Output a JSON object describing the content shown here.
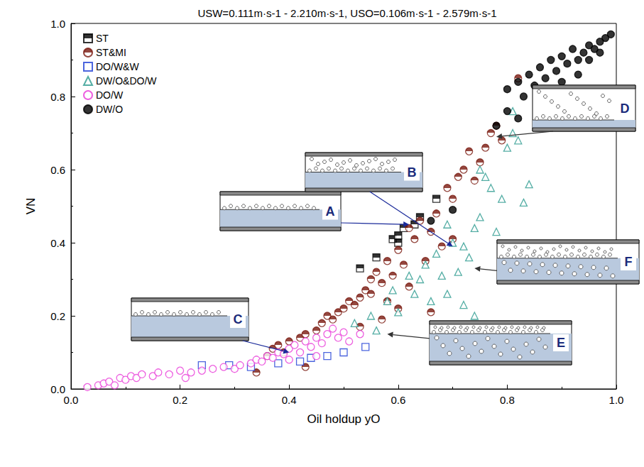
{
  "chart_data": {
    "type": "scatter",
    "title": "USW=0.111m·s-1 - 2.210m·s-1, USO=0.106m·s-1 - 2.579m·s-1",
    "x_label": "Oil holdup yO",
    "y_label": "VN",
    "xlim": [
      0,
      1
    ],
    "ylim": [
      0,
      1
    ],
    "xticks": [
      {
        "value": 0,
        "label": "0.0"
      },
      {
        "value": 0.2,
        "label": "0.2"
      },
      {
        "value": 0.4,
        "label": "0.4"
      },
      {
        "value": 0.6,
        "label": "0.6"
      },
      {
        "value": 0.8,
        "label": "0.8"
      },
      {
        "value": 1,
        "label": "1.0"
      }
    ],
    "yticks": [
      {
        "value": 0,
        "label": "0.0"
      },
      {
        "value": 0.2,
        "label": "0.2"
      },
      {
        "value": 0.4,
        "label": "0.4"
      },
      {
        "value": 0.6,
        "label": "0.6"
      },
      {
        "value": 0.8,
        "label": "0.8"
      },
      {
        "value": 1,
        "label": "1.0"
      }
    ],
    "grid": false,
    "legend": "upper left",
    "series": [
      {
        "name": "ST",
        "color": "#000000",
        "marker": "half-square",
        "x": [
          0.53,
          0.56,
          0.59,
          0.6,
          0.61,
          0.63,
          0.64,
          0.67,
          0.6
        ],
        "values": [
          0.33,
          0.36,
          0.41,
          0.42,
          0.44,
          0.45,
          0.47,
          0.52,
          0.4
        ]
      },
      {
        "name": "ST&MI",
        "color": "#7a1a10",
        "marker": "half-circle",
        "x": [
          0.34,
          0.36,
          0.37,
          0.38,
          0.39,
          0.4,
          0.42,
          0.43,
          0.43,
          0.45,
          0.46,
          0.47,
          0.48,
          0.49,
          0.5,
          0.51,
          0.52,
          0.53,
          0.54,
          0.55,
          0.55,
          0.56,
          0.57,
          0.58,
          0.58,
          0.59,
          0.6,
          0.6,
          0.61,
          0.62,
          0.62,
          0.63,
          0.64,
          0.65,
          0.66,
          0.67,
          0.68,
          0.69,
          0.7,
          0.7,
          0.71,
          0.72,
          0.73,
          0.74,
          0.75,
          0.76,
          0.77,
          0.78,
          0.79,
          0.82,
          0.57,
          0.53,
          0.66
        ],
        "values": [
          0.045,
          0.09,
          0.11,
          0.12,
          0.1,
          0.13,
          0.14,
          0.06,
          0.15,
          0.16,
          0.18,
          0.2,
          0.19,
          0.21,
          0.22,
          0.24,
          0.23,
          0.25,
          0.27,
          0.26,
          0.3,
          0.32,
          0.29,
          0.35,
          0.24,
          0.31,
          0.38,
          0.22,
          0.34,
          0.44,
          0.28,
          0.41,
          0.46,
          0.35,
          0.43,
          0.48,
          0.39,
          0.55,
          0.52,
          0.41,
          0.58,
          0.6,
          0.65,
          0.57,
          0.62,
          0.66,
          0.7,
          0.72,
          0.68,
          0.85,
          0.19,
          0.17,
          0.21
        ]
      },
      {
        "name": "DO/W&W",
        "color": "#1f3fd6",
        "marker": "open-square",
        "x": [
          0.24,
          0.29,
          0.33,
          0.38,
          0.42,
          0.47,
          0.5,
          0.54,
          0.44
        ],
        "values": [
          0.065,
          0.065,
          0.06,
          0.07,
          0.075,
          0.09,
          0.1,
          0.115,
          0.085
        ]
      },
      {
        "name": "DW/O&DO/W",
        "color": "#2a9a8e",
        "marker": "open-triangle",
        "x": [
          0.52,
          0.55,
          0.56,
          0.58,
          0.59,
          0.6,
          0.62,
          0.63,
          0.64,
          0.65,
          0.66,
          0.67,
          0.68,
          0.69,
          0.7,
          0.71,
          0.72,
          0.73,
          0.74,
          0.75,
          0.75,
          0.76,
          0.77,
          0.78,
          0.79,
          0.8,
          0.81,
          0.82,
          0.83,
          0.84,
          0.81,
          0.74,
          0.72,
          0.69
        ],
        "values": [
          0.18,
          0.2,
          0.16,
          0.24,
          0.27,
          0.21,
          0.31,
          0.26,
          0.3,
          0.34,
          0.24,
          0.37,
          0.31,
          0.45,
          0.4,
          0.32,
          0.39,
          0.36,
          0.44,
          0.47,
          0.6,
          0.58,
          0.55,
          0.43,
          0.52,
          0.66,
          0.7,
          0.68,
          0.51,
          0.56,
          0.76,
          0.2,
          0.23,
          0.26
        ]
      },
      {
        "name": "DO/W",
        "color": "#e83ad8",
        "marker": "open-circle",
        "x": [
          0.03,
          0.05,
          0.06,
          0.07,
          0.08,
          0.09,
          0.1,
          0.11,
          0.12,
          0.13,
          0.15,
          0.16,
          0.18,
          0.2,
          0.21,
          0.22,
          0.24,
          0.26,
          0.28,
          0.3,
          0.31,
          0.33,
          0.34,
          0.35,
          0.36,
          0.37,
          0.38,
          0.39,
          0.4,
          0.41,
          0.42,
          0.43,
          0.44,
          0.45,
          0.46,
          0.47,
          0.48,
          0.49,
          0.5,
          0.51,
          0.53,
          0.45,
          0.4
        ],
        "values": [
          0.005,
          0.01,
          0.015,
          0.02,
          0.01,
          0.03,
          0.025,
          0.035,
          0.03,
          0.04,
          0.035,
          0.045,
          0.04,
          0.05,
          0.03,
          0.045,
          0.05,
          0.055,
          0.06,
          0.055,
          0.065,
          0.07,
          0.08,
          0.075,
          0.09,
          0.085,
          0.1,
          0.095,
          0.11,
          0.12,
          0.1,
          0.13,
          0.115,
          0.14,
          0.125,
          0.15,
          0.165,
          0.14,
          0.155,
          0.13,
          0.15,
          0.09,
          0.08
        ]
      },
      {
        "name": "DW/O",
        "color": "#000000",
        "marker": "circle",
        "x": [
          0.66,
          0.7,
          0.78,
          0.8,
          0.82,
          0.8,
          0.82,
          0.83,
          0.84,
          0.85,
          0.86,
          0.87,
          0.88,
          0.89,
          0.9,
          0.9,
          0.91,
          0.92,
          0.93,
          0.94,
          0.95,
          0.96,
          0.97,
          0.98,
          0.99,
          0.86,
          0.88,
          0.93,
          0.95,
          0.97
        ],
        "values": [
          0.46,
          0.49,
          0.72,
          0.76,
          0.74,
          0.82,
          0.84,
          0.8,
          0.86,
          0.83,
          0.88,
          0.85,
          0.9,
          0.87,
          0.91,
          0.84,
          0.89,
          0.93,
          0.9,
          0.92,
          0.94,
          0.93,
          0.95,
          0.96,
          0.97,
          0.81,
          0.79,
          0.86,
          0.9,
          0.92
        ]
      }
    ],
    "annotations": [
      {
        "text": "A",
        "x": 0.62,
        "y": 0.45
      },
      {
        "text": "B",
        "x": 0.7,
        "y": 0.39
      },
      {
        "text": "C",
        "x": 0.4,
        "y": 0.1
      },
      {
        "text": "D",
        "x": 0.78,
        "y": 0.69
      },
      {
        "text": "E",
        "x": 0.58,
        "y": 0.15
      },
      {
        "text": "F",
        "x": 0.74,
        "y": 0.33
      }
    ]
  }
}
